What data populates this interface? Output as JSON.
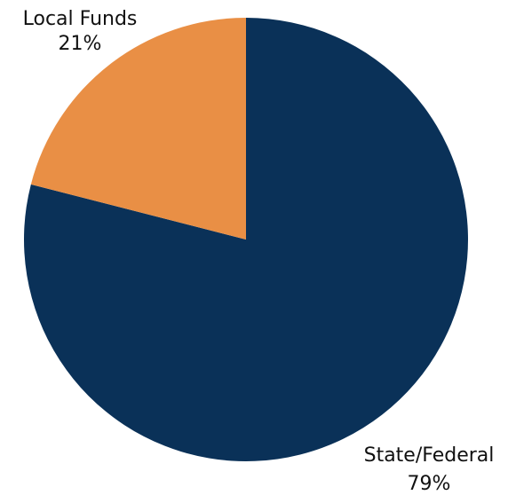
{
  "chart_data": {
    "type": "pie",
    "categories": [
      "State/Federal",
      "Local Funds"
    ],
    "values": [
      79,
      21
    ],
    "value_labels": [
      "79%",
      "21%"
    ],
    "colors": [
      "#0a3158",
      "#e98f45"
    ]
  }
}
